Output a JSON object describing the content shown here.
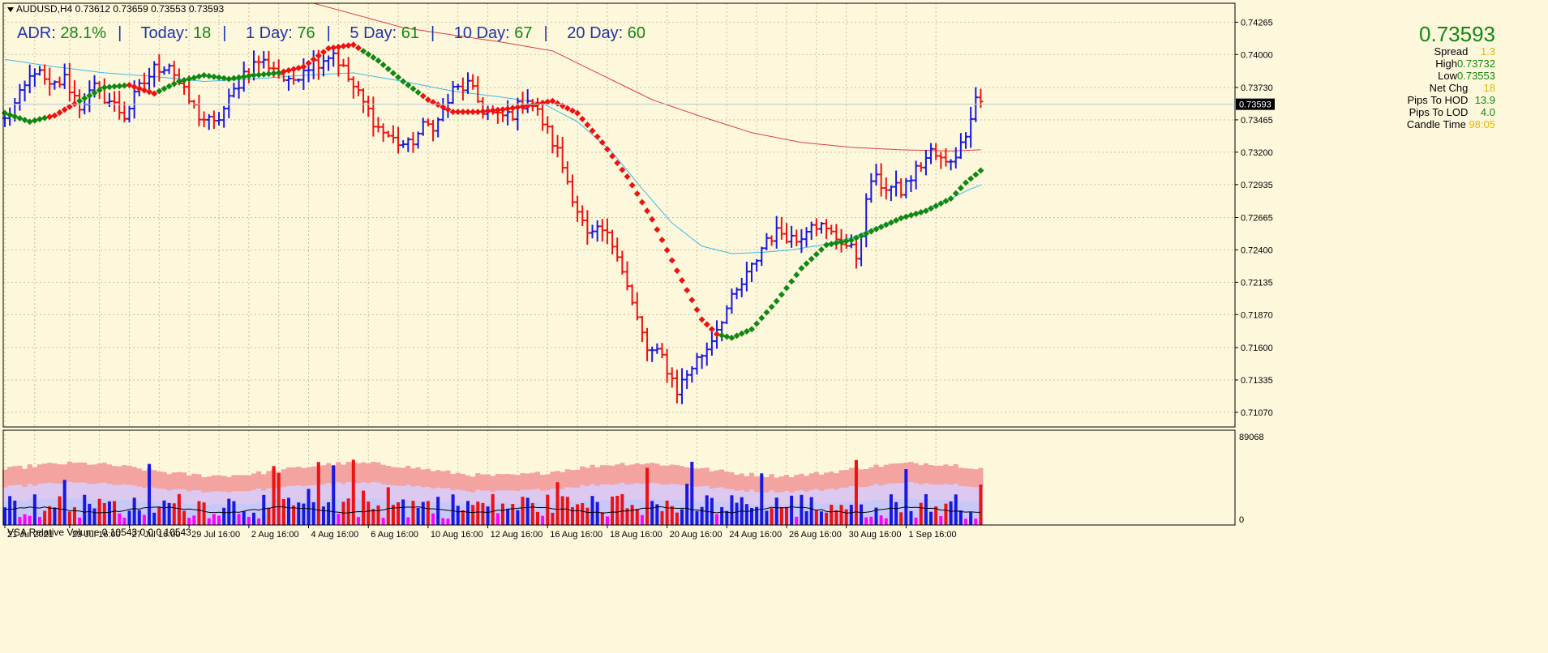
{
  "header": {
    "symbol_line": "AUDUSD,H4  0.73612 0.73659 0.73553 0.73593"
  },
  "adr": [
    {
      "label": "ADR:",
      "value": "28.1%"
    },
    {
      "label": "Today:",
      "value": "18"
    },
    {
      "label": "1 Day:",
      "value": "76"
    },
    {
      "label": "5 Day:",
      "value": "61"
    },
    {
      "label": "10 Day:",
      "value": "67"
    },
    {
      "label": "20 Day:",
      "value": "60"
    }
  ],
  "info_panel": {
    "price": "0.73593",
    "rows": [
      {
        "label": "Spread",
        "value": "1.3",
        "color": "#e6b800"
      },
      {
        "label": "High",
        "value": "0.73732",
        "color": "#118811"
      },
      {
        "label": "Low",
        "value": "0.73553",
        "color": "#118811"
      },
      {
        "label": "Net Chg",
        "value": "18",
        "color": "#e6b800"
      },
      {
        "label": "Pips To HOD",
        "value": "13.9",
        "color": "#118811"
      },
      {
        "label": "Pips To LOD",
        "value": "4.0",
        "color": "#118811"
      },
      {
        "label": "Candle Time",
        "value": "98:05",
        "color": "#e6b800"
      }
    ]
  },
  "vsa": {
    "title": "VSA Relative Volume 0 10543 0 0 0 10543",
    "max_label": "89068",
    "min_label": "0"
  },
  "colors": {
    "background": "#fdf8dc",
    "up_bar": "#1818e0",
    "down_bar": "#ee1111",
    "dots_up": "#118811",
    "dots_down": "#ee1111",
    "ma_slow": "#d84040",
    "ma_fast": "#3fb8e8",
    "vol_high": "#ff00ff"
  },
  "chart_data": {
    "type": "ohlc",
    "title": "AUDUSD,H4",
    "y_ticks": [
      "0.74265",
      "0.74000",
      "0.73730",
      "0.73465",
      "0.73200",
      "0.72935",
      "0.72665",
      "0.72400",
      "0.72135",
      "0.71870",
      "0.71600",
      "0.71335",
      "0.71070"
    ],
    "ylim": [
      0.7095,
      0.7442
    ],
    "current_price": 0.73593,
    "current_price_label": "0.73593",
    "x_tick_labels": [
      "21 Jul 2021",
      "23 Jul 16:00",
      "27 Jul 16:00",
      "29 Jul 16:00",
      "2 Aug 16:00",
      "4 Aug 16:00",
      "6 Aug 16:00",
      "10 Aug 16:00",
      "12 Aug 16:00",
      "16 Aug 16:00",
      "18 Aug 16:00",
      "20 Aug 16:00",
      "24 Aug 16:00",
      "26 Aug 16:00",
      "30 Aug 16:00",
      "1 Sep 16:00"
    ],
    "x_tick_bar_index": [
      0,
      13,
      25,
      37,
      49,
      61,
      73,
      85,
      97,
      109,
      121,
      133,
      145,
      157,
      169,
      181
    ],
    "close_anchors": [
      [
        0,
        0.7346
      ],
      [
        3,
        0.7365
      ],
      [
        6,
        0.7388
      ],
      [
        9,
        0.7372
      ],
      [
        12,
        0.738
      ],
      [
        15,
        0.7358
      ],
      [
        18,
        0.7372
      ],
      [
        21,
        0.7362
      ],
      [
        24,
        0.735
      ],
      [
        27,
        0.7372
      ],
      [
        30,
        0.7388
      ],
      [
        33,
        0.7393
      ],
      [
        36,
        0.7368
      ],
      [
        39,
        0.735
      ],
      [
        42,
        0.7342
      ],
      [
        45,
        0.7362
      ],
      [
        48,
        0.7385
      ],
      [
        51,
        0.7395
      ],
      [
        54,
        0.739
      ],
      [
        57,
        0.7375
      ],
      [
        60,
        0.739
      ],
      [
        63,
        0.7395
      ],
      [
        66,
        0.7402
      ],
      [
        69,
        0.738
      ],
      [
        72,
        0.736
      ],
      [
        75,
        0.734
      ],
      [
        78,
        0.733
      ],
      [
        81,
        0.7325
      ],
      [
        84,
        0.734
      ],
      [
        87,
        0.7345
      ],
      [
        90,
        0.737
      ],
      [
        93,
        0.7375
      ],
      [
        96,
        0.7355
      ],
      [
        99,
        0.7348
      ],
      [
        102,
        0.7352
      ],
      [
        105,
        0.7365
      ],
      [
        108,
        0.7345
      ],
      [
        111,
        0.732
      ],
      [
        114,
        0.7285
      ],
      [
        117,
        0.725
      ],
      [
        120,
        0.7255
      ],
      [
        123,
        0.724
      ],
      [
        126,
        0.7195
      ],
      [
        129,
        0.7158
      ],
      [
        132,
        0.7152
      ],
      [
        135,
        0.7125
      ],
      [
        138,
        0.7145
      ],
      [
        141,
        0.716
      ],
      [
        144,
        0.7185
      ],
      [
        147,
        0.7205
      ],
      [
        150,
        0.7225
      ],
      [
        153,
        0.725
      ],
      [
        156,
        0.7255
      ],
      [
        159,
        0.7248
      ],
      [
        162,
        0.7265
      ],
      [
        165,
        0.7255
      ],
      [
        168,
        0.7248
      ],
      [
        171,
        0.7235
      ],
      [
        174,
        0.7298
      ],
      [
        177,
        0.7292
      ],
      [
        180,
        0.7288
      ],
      [
        183,
        0.7305
      ],
      [
        186,
        0.732
      ],
      [
        189,
        0.731
      ],
      [
        192,
        0.7325
      ],
      [
        195,
        0.7365
      ],
      [
        196,
        0.7362
      ]
    ],
    "ma_slow_anchors": [
      [
        62,
        0.7442
      ],
      [
        80,
        0.7422
      ],
      [
        100,
        0.741
      ],
      [
        110,
        0.7403
      ],
      [
        120,
        0.7383
      ],
      [
        130,
        0.7363
      ],
      [
        140,
        0.7349
      ],
      [
        150,
        0.7336
      ],
      [
        160,
        0.7328
      ],
      [
        170,
        0.7324
      ],
      [
        180,
        0.7322
      ],
      [
        190,
        0.7321
      ],
      [
        196,
        0.7322
      ]
    ],
    "ma_fast_anchors": [
      [
        0,
        0.7396
      ],
      [
        10,
        0.739
      ],
      [
        20,
        0.7385
      ],
      [
        30,
        0.7382
      ],
      [
        40,
        0.7378
      ],
      [
        50,
        0.738
      ],
      [
        60,
        0.7383
      ],
      [
        70,
        0.7385
      ],
      [
        80,
        0.7378
      ],
      [
        90,
        0.737
      ],
      [
        100,
        0.7365
      ],
      [
        108,
        0.736
      ],
      [
        115,
        0.7345
      ],
      [
        122,
        0.732
      ],
      [
        128,
        0.729
      ],
      [
        134,
        0.7262
      ],
      [
        140,
        0.7243
      ],
      [
        146,
        0.7237
      ],
      [
        152,
        0.7238
      ],
      [
        158,
        0.724
      ],
      [
        164,
        0.7244
      ],
      [
        170,
        0.725
      ],
      [
        176,
        0.726
      ],
      [
        182,
        0.7268
      ],
      [
        188,
        0.7278
      ],
      [
        194,
        0.729
      ],
      [
        196,
        0.7293
      ]
    ],
    "dots_anchors": [
      [
        0,
        0.7352
      ],
      [
        5,
        0.7345
      ],
      [
        10,
        0.735
      ],
      [
        15,
        0.7362
      ],
      [
        20,
        0.7373
      ],
      [
        25,
        0.7375
      ],
      [
        30,
        0.7368
      ],
      [
        35,
        0.7378
      ],
      [
        40,
        0.7383
      ],
      [
        45,
        0.738
      ],
      [
        50,
        0.7383
      ],
      [
        55,
        0.7385
      ],
      [
        60,
        0.739
      ],
      [
        65,
        0.7405
      ],
      [
        70,
        0.7408
      ],
      [
        75,
        0.7395
      ],
      [
        80,
        0.7378
      ],
      [
        85,
        0.7363
      ],
      [
        90,
        0.7353
      ],
      [
        95,
        0.7353
      ],
      [
        100,
        0.7355
      ],
      [
        105,
        0.7358
      ],
      [
        110,
        0.7362
      ],
      [
        115,
        0.7352
      ],
      [
        120,
        0.7328
      ],
      [
        125,
        0.73
      ],
      [
        130,
        0.7265
      ],
      [
        135,
        0.7223
      ],
      [
        140,
        0.7183
      ],
      [
        143,
        0.7171
      ],
      [
        146,
        0.7168
      ],
      [
        150,
        0.7175
      ],
      [
        155,
        0.7198
      ],
      [
        160,
        0.7225
      ],
      [
        165,
        0.7244
      ],
      [
        170,
        0.7248
      ],
      [
        175,
        0.7257
      ],
      [
        180,
        0.7266
      ],
      [
        185,
        0.7272
      ],
      [
        190,
        0.7282
      ],
      [
        193,
        0.7295
      ],
      [
        196,
        0.7305
      ]
    ],
    "dots_trend": [
      [
        "up",
        0,
        8
      ],
      [
        "down",
        8,
        14
      ],
      [
        "up",
        14,
        24
      ],
      [
        "down",
        24,
        30
      ],
      [
        "up",
        30,
        55
      ],
      [
        "down",
        55,
        71
      ],
      [
        "up",
        71,
        83
      ],
      [
        "down",
        83,
        143
      ],
      [
        "up",
        143,
        196
      ]
    ],
    "bar_count": 197,
    "vsa_ylim": [
      0,
      89068
    ]
  }
}
